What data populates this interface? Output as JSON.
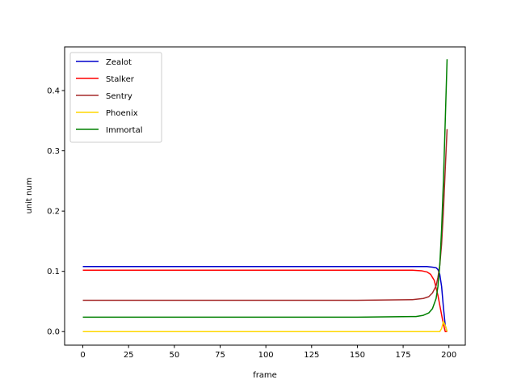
{
  "chart_data": {
    "type": "line",
    "title": "",
    "xlabel": "frame",
    "ylabel": "unit num",
    "xlim": [
      -9.95,
      208.95
    ],
    "ylim": [
      -0.0225,
      0.4725
    ],
    "xticks": [
      0,
      25,
      50,
      75,
      100,
      125,
      150,
      175,
      200
    ],
    "yticks": [
      0.0,
      0.1,
      0.2,
      0.3,
      0.4
    ],
    "xtick_labels": [
      "0",
      "25",
      "50",
      "75",
      "100",
      "125",
      "150",
      "175",
      "200"
    ],
    "ytick_labels": [
      "0.0",
      "0.1",
      "0.2",
      "0.3",
      "0.4"
    ],
    "grid": false,
    "legend": "upper-left",
    "series": [
      {
        "name": "Zealot",
        "color": "#0000cc",
        "x": [
          0,
          50,
          100,
          150,
          180,
          188,
          191,
          193,
          194,
          195,
          196,
          197,
          198,
          199
        ],
        "y": [
          0.108,
          0.108,
          0.108,
          0.108,
          0.108,
          0.108,
          0.107,
          0.106,
          0.103,
          0.095,
          0.075,
          0.04,
          0.01,
          0.0
        ]
      },
      {
        "name": "Stalker",
        "color": "#ff0000",
        "x": [
          0,
          50,
          100,
          150,
          180,
          185,
          188,
          190,
          192,
          194,
          196,
          197,
          198,
          199
        ],
        "y": [
          0.102,
          0.102,
          0.102,
          0.102,
          0.102,
          0.101,
          0.099,
          0.095,
          0.085,
          0.06,
          0.028,
          0.012,
          0.0,
          0.0
        ]
      },
      {
        "name": "Sentry",
        "color": "#a52a2a",
        "x": [
          0,
          50,
          100,
          150,
          180,
          186,
          189,
          191,
          193,
          194,
          195,
          196,
          197,
          198,
          199
        ],
        "y": [
          0.052,
          0.052,
          0.052,
          0.052,
          0.053,
          0.055,
          0.058,
          0.064,
          0.076,
          0.09,
          0.11,
          0.145,
          0.2,
          0.27,
          0.336
        ]
      },
      {
        "name": "Phoenix",
        "color": "#ffd700",
        "x": [
          0,
          50,
          100,
          150,
          195,
          196,
          197,
          198,
          199
        ],
        "y": [
          0.0,
          0.0,
          0.0,
          0.0,
          0.0,
          0.005,
          0.017,
          0.01,
          0.0
        ]
      },
      {
        "name": "Immortal",
        "color": "#008000",
        "x": [
          0,
          50,
          100,
          150,
          182,
          186,
          189,
          191,
          193,
          194,
          195,
          196,
          197,
          198,
          199
        ],
        "y": [
          0.024,
          0.024,
          0.024,
          0.024,
          0.025,
          0.027,
          0.031,
          0.038,
          0.055,
          0.075,
          0.11,
          0.17,
          0.25,
          0.35,
          0.452
        ]
      }
    ]
  }
}
